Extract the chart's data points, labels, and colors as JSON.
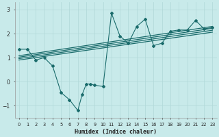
{
  "xlabel": "Humidex (Indice chaleur)",
  "bg_color": "#c8eaea",
  "line_color": "#1a6b6b",
  "grid_color": "#b0d8d8",
  "xlim": [
    -0.5,
    23.5
  ],
  "ylim": [
    -1.5,
    3.3
  ],
  "xticks": [
    0,
    1,
    2,
    3,
    4,
    5,
    6,
    7,
    8,
    9,
    10,
    11,
    12,
    13,
    14,
    15,
    16,
    17,
    18,
    19,
    20,
    21,
    22,
    23
  ],
  "yticks": [
    -1,
    0,
    1,
    2,
    3
  ],
  "data_x": [
    0,
    1,
    2,
    3,
    4,
    5,
    6,
    7,
    7.5,
    8,
    8.5,
    9,
    10,
    11,
    12,
    13,
    14,
    15,
    16,
    17,
    18,
    19,
    20,
    21,
    22,
    23
  ],
  "data_y": [
    1.35,
    1.35,
    0.9,
    1.0,
    0.65,
    -0.45,
    -0.75,
    -1.2,
    -0.55,
    -0.1,
    -0.1,
    -0.15,
    -0.2,
    2.85,
    1.9,
    1.6,
    2.3,
    2.6,
    1.5,
    1.6,
    2.1,
    2.15,
    2.15,
    2.55,
    2.2,
    2.25
  ],
  "reg_lines": [
    {
      "x": [
        0,
        23
      ],
      "y": [
        1.08,
        2.3
      ]
    },
    {
      "x": [
        0,
        23
      ],
      "y": [
        1.02,
        2.22
      ]
    },
    {
      "x": [
        0,
        23
      ],
      "y": [
        0.96,
        2.14
      ]
    },
    {
      "x": [
        0,
        23
      ],
      "y": [
        0.9,
        2.06
      ]
    }
  ]
}
